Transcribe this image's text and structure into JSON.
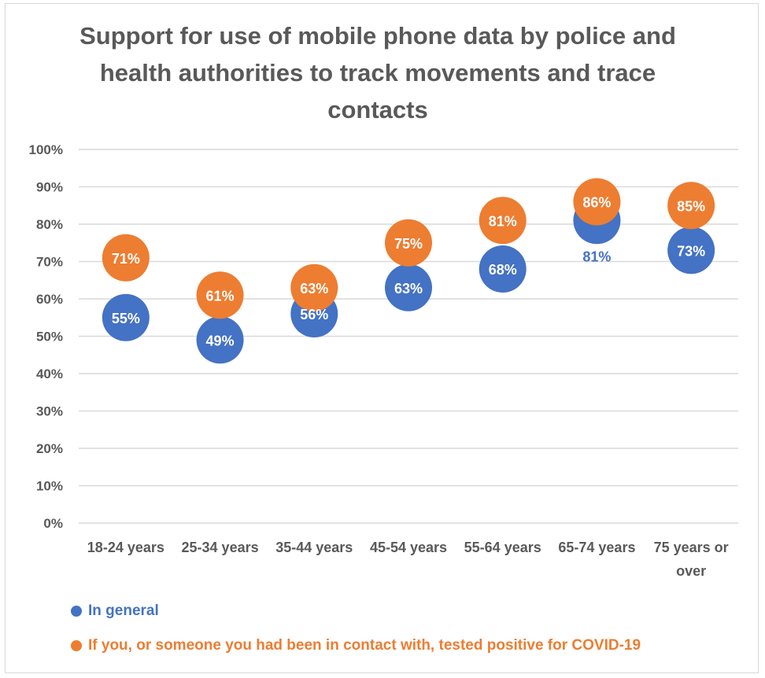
{
  "chart_data": {
    "type": "scatter",
    "title": "Support for use of mobile phone data by police and health authorities to track movements and trace contacts",
    "categories": [
      "18-24 years",
      "25-34 years",
      "35-44 years",
      "45-54 years",
      "55-64 years",
      "65-74 years",
      "75 years or over"
    ],
    "series": [
      {
        "name": "In general",
        "color": "#4472c4",
        "values": [
          55,
          49,
          56,
          63,
          68,
          81,
          73
        ],
        "labels": [
          "55%",
          "49%",
          "56%",
          "63%",
          "68%",
          "81%",
          "73%"
        ]
      },
      {
        "name": "If you, or someone you had been in contact with, tested positive for COVID-19",
        "color": "#ed7d31",
        "values": [
          71,
          61,
          63,
          75,
          81,
          86,
          85
        ],
        "labels": [
          "71%",
          "61%",
          "63%",
          "75%",
          "81%",
          "86%",
          "85%"
        ]
      }
    ],
    "ylim": [
      0,
      100
    ],
    "yticks": [
      "0%",
      "10%",
      "20%",
      "30%",
      "40%",
      "50%",
      "60%",
      "70%",
      "80%",
      "90%",
      "100%"
    ],
    "grid": true,
    "legend_position": "bottom-left"
  }
}
